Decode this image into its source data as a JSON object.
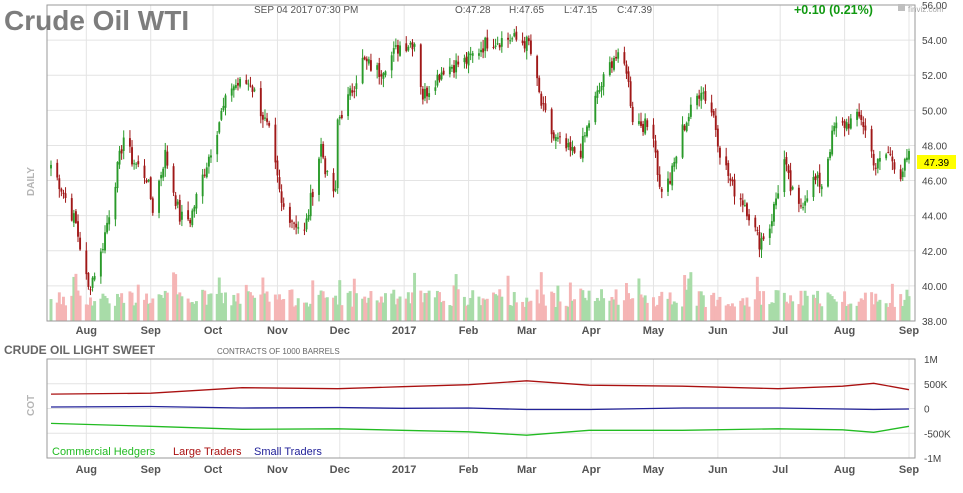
{
  "header": {
    "title": "Crude Oil WTI",
    "datetime": "SEP 04 2017 07:30 PM",
    "ohlc": {
      "open": "O:47.28",
      "high": "H:47.65",
      "low": "L:47.15",
      "close": "C:47.39"
    },
    "change": "+0.10 (0.21%)",
    "brand": "finviz.com",
    "brand_icon": "finviz-logo-icon"
  },
  "colors": {
    "up": "#2a9a2a",
    "down": "#a01818",
    "vol_up": "#a8dca8",
    "vol_down": "#f5b5b5",
    "grid": "#e4e4e4",
    "price_tag": "#ffff00",
    "commercial": "#22bb22",
    "large": "#aa1111",
    "small": "#222299",
    "change": "#119911"
  },
  "chart_data": [
    {
      "type": "candlestick",
      "side_label": "DAILY",
      "ylim": [
        38,
        56
      ],
      "y_ticks": [
        "56.00",
        "54.00",
        "52.00",
        "50.00",
        "48.00",
        "46.00",
        "44.00",
        "42.00",
        "40.00",
        "38.00"
      ],
      "x_ticks": [
        "Aug",
        "Sep",
        "Oct",
        "Nov",
        "Dec",
        "2017",
        "Feb",
        "Mar",
        "Apr",
        "May",
        "Jun",
        "Jul",
        "Aug",
        "Sep"
      ],
      "last_price": "47.39",
      "anchors": [
        [
          "2016-07-15",
          46.9
        ],
        [
          "2016-07-20",
          45.6
        ],
        [
          "2016-07-27",
          43.5
        ],
        [
          "2016-08-02",
          39.8
        ],
        [
          "2016-08-08",
          41.8
        ],
        [
          "2016-08-12",
          44.2
        ],
        [
          "2016-08-19",
          48.5
        ],
        [
          "2016-08-23",
          47.2
        ],
        [
          "2016-08-30",
          46.2
        ],
        [
          "2016-09-02",
          44.4
        ],
        [
          "2016-09-08",
          47.5
        ],
        [
          "2016-09-15",
          43.9
        ],
        [
          "2016-09-20",
          43.8
        ],
        [
          "2016-09-28",
          47.0
        ],
        [
          "2016-10-05",
          49.8
        ],
        [
          "2016-10-10",
          51.4
        ],
        [
          "2016-10-19",
          51.6
        ],
        [
          "2016-10-24",
          50.0
        ],
        [
          "2016-10-28",
          48.7
        ],
        [
          "2016-11-03",
          44.6
        ],
        [
          "2016-11-14",
          43.0
        ],
        [
          "2016-11-22",
          48.0
        ],
        [
          "2016-11-25",
          46.1
        ],
        [
          "2016-11-29",
          45.2
        ],
        [
          "2016-11-30",
          49.4
        ],
        [
          "2016-12-06",
          50.9
        ],
        [
          "2016-12-12",
          52.8
        ],
        [
          "2016-12-20",
          52.2
        ],
        [
          "2016-12-30",
          53.7
        ],
        [
          "2017-01-06",
          53.9
        ],
        [
          "2017-01-10",
          50.8
        ],
        [
          "2017-01-20",
          52.4
        ],
        [
          "2017-01-31",
          52.8
        ],
        [
          "2017-02-10",
          53.9
        ],
        [
          "2017-02-21",
          54.1
        ],
        [
          "2017-03-02",
          53.8
        ],
        [
          "2017-03-08",
          50.3
        ],
        [
          "2017-03-14",
          48.4
        ],
        [
          "2017-03-22",
          47.6
        ],
        [
          "2017-03-27",
          47.7
        ],
        [
          "2017-04-03",
          50.6
        ],
        [
          "2017-04-12",
          53.1
        ],
        [
          "2017-04-18",
          52.4
        ],
        [
          "2017-04-21",
          49.6
        ],
        [
          "2017-05-01",
          48.8
        ],
        [
          "2017-05-04",
          45.5
        ],
        [
          "2017-05-09",
          46.0
        ],
        [
          "2017-05-15",
          48.9
        ],
        [
          "2017-05-24",
          51.3
        ],
        [
          "2017-05-30",
          49.7
        ],
        [
          "2017-06-02",
          47.7
        ],
        [
          "2017-06-08",
          45.6
        ],
        [
          "2017-06-14",
          44.7
        ],
        [
          "2017-06-21",
          42.5
        ],
        [
          "2017-06-26",
          43.4
        ],
        [
          "2017-07-03",
          47.1
        ],
        [
          "2017-07-06",
          45.5
        ],
        [
          "2017-07-10",
          44.4
        ],
        [
          "2017-07-17",
          46.0
        ],
        [
          "2017-07-21",
          45.8
        ],
        [
          "2017-07-27",
          49.0
        ],
        [
          "2017-08-01",
          49.2
        ],
        [
          "2017-08-09",
          49.6
        ],
        [
          "2017-08-16",
          46.8
        ],
        [
          "2017-08-22",
          47.6
        ],
        [
          "2017-08-28",
          46.4
        ],
        [
          "2017-09-01",
          47.3
        ]
      ],
      "start_date": "2016-07-15",
      "end_date": "2017-09-01"
    },
    {
      "type": "line",
      "title": "CRUDE OIL LIGHT SWEET",
      "subtitle": "CONTRACTS OF 1000 BARRELS",
      "side_label": "COT",
      "ylim": [
        -1000000,
        1000000
      ],
      "y_ticks": [
        "1M",
        "500K",
        "0",
        "-500K",
        "-1M"
      ],
      "x_ticks": [
        "Aug",
        "Sep",
        "Oct",
        "Nov",
        "Dec",
        "2017",
        "Feb",
        "Mar",
        "Apr",
        "May",
        "Jun",
        "Jul",
        "Aug",
        "Sep"
      ],
      "series": [
        {
          "name": "Commercial Hedgers",
          "points": [
            [
              "2016-07-15",
              -300000
            ],
            [
              "2016-09-01",
              -360000
            ],
            [
              "2016-10-15",
              -420000
            ],
            [
              "2016-11-30",
              -410000
            ],
            [
              "2016-12-31",
              -440000
            ],
            [
              "2017-02-01",
              -470000
            ],
            [
              "2017-03-01",
              -540000
            ],
            [
              "2017-03-31",
              -440000
            ],
            [
              "2017-05-15",
              -440000
            ],
            [
              "2017-06-30",
              -410000
            ],
            [
              "2017-07-31",
              -430000
            ],
            [
              "2017-08-15",
              -480000
            ],
            [
              "2017-09-01",
              -360000
            ]
          ]
        },
        {
          "name": "Large Traders",
          "points": [
            [
              "2016-07-15",
              290000
            ],
            [
              "2016-09-01",
              310000
            ],
            [
              "2016-10-15",
              420000
            ],
            [
              "2016-11-30",
              400000
            ],
            [
              "2016-12-31",
              440000
            ],
            [
              "2017-02-01",
              480000
            ],
            [
              "2017-03-01",
              560000
            ],
            [
              "2017-03-31",
              470000
            ],
            [
              "2017-05-15",
              450000
            ],
            [
              "2017-06-30",
              400000
            ],
            [
              "2017-07-31",
              450000
            ],
            [
              "2017-08-15",
              510000
            ],
            [
              "2017-09-01",
              380000
            ]
          ]
        },
        {
          "name": "Small Traders",
          "points": [
            [
              "2016-07-15",
              30000
            ],
            [
              "2016-09-01",
              40000
            ],
            [
              "2016-10-15",
              10000
            ],
            [
              "2016-11-30",
              20000
            ],
            [
              "2016-12-31",
              5000
            ],
            [
              "2017-02-01",
              10000
            ],
            [
              "2017-03-01",
              -20000
            ],
            [
              "2017-03-31",
              -20000
            ],
            [
              "2017-05-15",
              10000
            ],
            [
              "2017-06-30",
              10000
            ],
            [
              "2017-07-31",
              -10000
            ],
            [
              "2017-08-15",
              -20000
            ],
            [
              "2017-09-01",
              -10000
            ]
          ]
        }
      ]
    }
  ]
}
